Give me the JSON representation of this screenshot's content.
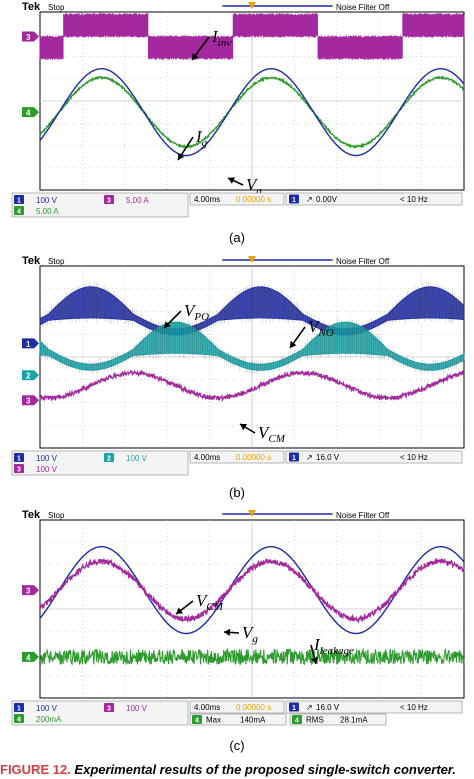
{
  "colors": {
    "ch1": "#1d2ca6",
    "ch2": "#1aa3a8",
    "ch3": "#a4299e",
    "ch4": "#2e9b2e",
    "grid": "#b8b8b8",
    "screen": "#ffffff",
    "frame": "#000000",
    "cursor": "#f0a000"
  },
  "chart_data": [
    {
      "type": "line",
      "caption": "(a)",
      "header": {
        "brand": "Tek",
        "state": "Stop",
        "filter": "Noise Filter Off"
      },
      "timebase": "4.00ms",
      "position": "0.00000 s",
      "trigger": {
        "channel": "1",
        "level": "0.00V",
        "freq": "< 10 Hz"
      },
      "channel_settings": [
        {
          "ch": "1",
          "scale": "100 V"
        },
        {
          "ch": "3",
          "scale": "5.00 A"
        },
        {
          "ch": "4",
          "scale": "5.00 A"
        }
      ],
      "x_divisions": 10,
      "y_divisions": 8,
      "series": [
        {
          "name": "I_inv",
          "label_main": "I",
          "label_sub": "inv",
          "channel": "3",
          "kind": "pwm_square",
          "offset_div": 2.9,
          "amplitude_div": 1.0,
          "period_div": 4.0,
          "phase_div": 0.55,
          "noise_div": 0.1
        },
        {
          "name": "I_g",
          "label_main": "I",
          "label_sub": "g",
          "channel": "4",
          "kind": "sine",
          "offset_div": -0.5,
          "amplitude_div": 1.55,
          "period_div": 4.0,
          "phase_div": 0.45,
          "noise_div": 0.04
        },
        {
          "name": "V_g",
          "label_main": "V",
          "label_sub": "g",
          "channel": "1",
          "kind": "sine",
          "offset_div": -0.5,
          "amplitude_div": 1.95,
          "period_div": 4.0,
          "phase_div": 0.45,
          "noise_div": 0.0
        }
      ],
      "markers": [
        {
          "ch": "3",
          "offset_div": 2.9
        },
        {
          "ch": "4",
          "offset_div": -0.5
        }
      ]
    },
    {
      "type": "line",
      "caption": "(b)",
      "header": {
        "brand": "Tek",
        "state": "Stop",
        "filter": "Noise Filter Off"
      },
      "timebase": "4.00ms",
      "position": "0.00000 s",
      "trigger": {
        "channel": "1",
        "level": "16.0 V",
        "freq": "< 10 Hz"
      },
      "channel_settings": [
        {
          "ch": "1",
          "scale": "100 V"
        },
        {
          "ch": "2",
          "scale": "100 V"
        },
        {
          "ch": "3",
          "scale": "100 V"
        }
      ],
      "x_divisions": 10,
      "y_divisions": 8,
      "series": [
        {
          "name": "V_PO",
          "label_main": "V",
          "label_sub": "PO",
          "channel": "1",
          "kind": "band",
          "offset_div": 1.75,
          "amplitude_div": 0.65,
          "period_div": 4.0,
          "phase_div": 0.2,
          "band_div": 0.55
        },
        {
          "name": "V_NO",
          "label_main": "V",
          "label_sub": "NO",
          "channel": "2",
          "kind": "band",
          "offset_div": 0.2,
          "amplitude_div": 0.65,
          "period_div": 4.0,
          "phase_div": 2.2,
          "band_div": 0.55
        },
        {
          "name": "V_CM",
          "label_main": "V",
          "label_sub": "CM",
          "channel": "3",
          "kind": "sine",
          "offset_div": -1.25,
          "amplitude_div": 0.55,
          "period_div": 4.0,
          "phase_div": 1.2,
          "noise_div": 0.09
        }
      ],
      "markers": [
        {
          "ch": "1",
          "offset_div": 0.6
        },
        {
          "ch": "2",
          "offset_div": -0.8
        },
        {
          "ch": "3",
          "offset_div": -1.9
        }
      ]
    },
    {
      "type": "line",
      "caption": "(c)",
      "header": {
        "brand": "Tek",
        "state": "Stop",
        "filter": "Noise Filter Off"
      },
      "timebase": "4.00ms",
      "position": "0.00000 s",
      "trigger": {
        "channel": "1",
        "level": "16.0 V",
        "freq": "< 10 Hz"
      },
      "channel_settings": [
        {
          "ch": "1",
          "scale": "100 V"
        },
        {
          "ch": "3",
          "scale": "100 V"
        },
        {
          "ch": "4",
          "scale": "200mA"
        }
      ],
      "measurements": [
        {
          "ch": "4",
          "label": "Max",
          "value": "140mA"
        },
        {
          "ch": "4",
          "label": "RMS",
          "value": "28.1mA"
        }
      ],
      "x_divisions": 10,
      "y_divisions": 8,
      "series": [
        {
          "name": "V_g",
          "label_main": "V",
          "label_sub": "g",
          "channel": "1",
          "kind": "sine",
          "offset_div": 0.85,
          "amplitude_div": 1.95,
          "period_div": 4.0,
          "phase_div": 0.45,
          "noise_div": 0.0
        },
        {
          "name": "V_CM",
          "label_main": "V",
          "label_sub": "CM",
          "channel": "3",
          "kind": "sine",
          "offset_div": 0.85,
          "amplitude_div": 1.3,
          "period_div": 4.0,
          "phase_div": 0.45,
          "noise_div": 0.12
        },
        {
          "name": "I_leakage",
          "label_main": "I",
          "label_sub": "leakage",
          "channel": "4",
          "kind": "noise",
          "offset_div": -2.15,
          "amplitude_div": 0.0,
          "period_div": 4.0,
          "phase_div": 0.0,
          "noise_div": 0.35
        }
      ],
      "markers": [
        {
          "ch": "3",
          "offset_div": 0.85
        },
        {
          "ch": "4",
          "offset_div": -2.15
        }
      ]
    }
  ],
  "figure_title": {
    "label": "FIGURE 12.",
    "text": "Experimental results of the proposed single-switch converter."
  }
}
